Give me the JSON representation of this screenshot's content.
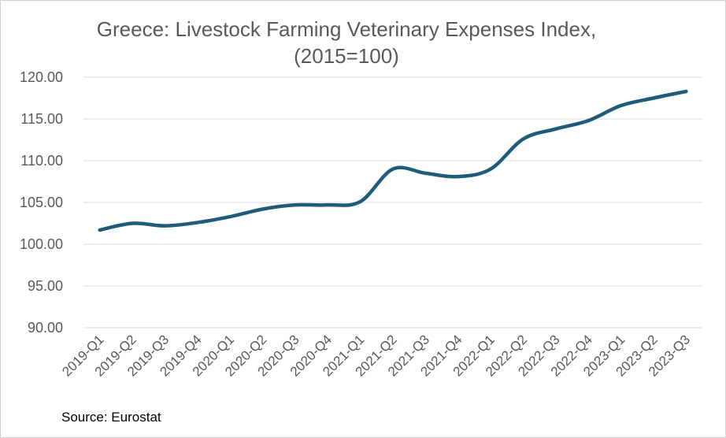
{
  "chart_data": {
    "type": "line",
    "title_line1": "Greece: Livestock Farming Veterinary Expenses Index,",
    "title_line2": "(2015=100)",
    "xlabel": "",
    "ylabel": "",
    "categories": [
      "2019-Q1",
      "2019-Q2",
      "2019-Q3",
      "2019-Q4",
      "2020-Q1",
      "2020-Q2",
      "2020-Q3",
      "2020-Q4",
      "2021-Q1",
      "2021-Q2",
      "2021-Q3",
      "2021-Q4",
      "2022-Q1",
      "2022-Q2",
      "2022-Q3",
      "2022-Q4",
      "2023-Q1",
      "2023-Q2",
      "2023-Q3"
    ],
    "series": [
      {
        "values": [
          101.7,
          102.5,
          102.2,
          102.6,
          103.3,
          104.2,
          104.7,
          104.7,
          105.1,
          109.0,
          108.5,
          108.1,
          109.0,
          112.6,
          113.8,
          114.8,
          116.6,
          117.5,
          118.3
        ]
      }
    ],
    "y_ticks": [
      "90.00",
      "95.00",
      "100.00",
      "105.00",
      "110.00",
      "115.00",
      "120.00"
    ],
    "ylim": [
      90,
      120
    ],
    "grid": true,
    "line_color": "#1f5c7a"
  },
  "source": "Source: Eurostat"
}
